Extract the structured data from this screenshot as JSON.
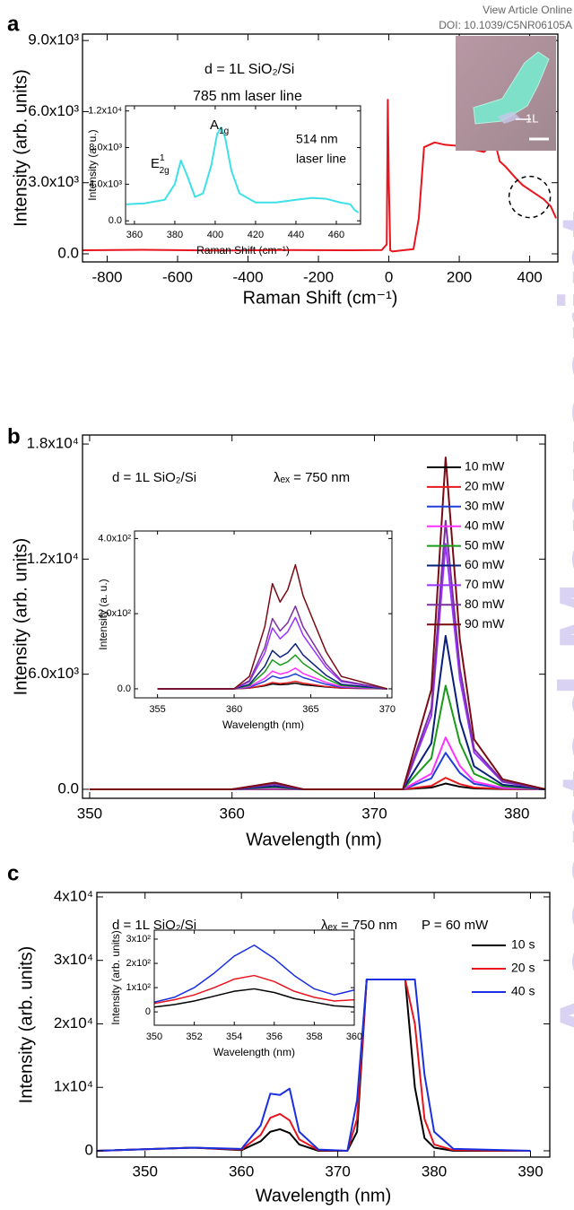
{
  "header": {
    "view": "View Article Online",
    "doi": "DOI: 10.1039/C5NR06105A"
  },
  "watermark": "Accepted Manuscript",
  "chart_data": [
    {
      "type": "line",
      "label": "a",
      "ylabel": "Intensity (arb. units)",
      "xlabel": "Raman Shift (cm⁻¹)",
      "annotations": [
        "d = 1L  SiO₂/Si",
        "785 nm  laser line",
        "1L"
      ],
      "xlim": [
        -870,
        480
      ],
      "ylim": [
        -340,
        9270
      ],
      "xticks": [
        -800,
        -600,
        -400,
        -200,
        0,
        200,
        400
      ],
      "yticks": [
        {
          "value": 0,
          "label": "0.0"
        },
        {
          "value": 3000,
          "label": "3.0x10³"
        },
        {
          "value": 6000,
          "label": "6.0x10³"
        },
        {
          "value": 9000,
          "label": "9.0x10³"
        }
      ],
      "x": [
        -870,
        -700,
        -500,
        -300,
        -100,
        -20,
        -6,
        -3,
        0,
        4,
        10,
        40,
        70,
        85,
        100,
        130,
        160,
        200,
        240,
        270,
        285,
        295,
        300,
        305,
        315,
        330,
        360,
        380,
        400,
        420,
        440,
        460,
        475
      ],
      "values": [
        150,
        170,
        140,
        160,
        150,
        160,
        400,
        6500,
        3000,
        150,
        100,
        150,
        200,
        1500,
        4500,
        4700,
        4600,
        4550,
        4400,
        4300,
        4500,
        4800,
        5000,
        4500,
        3900,
        3700,
        3200,
        2900,
        2700,
        2500,
        2300,
        2000,
        1500
      ],
      "color": "#e8141e"
    },
    {
      "type": "line",
      "ylabel": "Intensity (a. u.)",
      "xlabel": "Raman Shift (cm⁻¹)",
      "annotations": [
        "514 nm",
        "laser line"
      ],
      "peak_labels": [
        {
          "text": "E",
          "sup": "1",
          "sub": "2g"
        },
        {
          "text": "A",
          "sub": "1g"
        }
      ],
      "xlim": [
        355.6,
        472
      ],
      "ylim": [
        -375,
        12560
      ],
      "xticks": [
        360,
        380,
        400,
        420,
        440,
        460
      ],
      "yticks": [
        {
          "value": 0,
          "label": "0.0"
        },
        {
          "value": 4000,
          "label": "4.0x10³"
        },
        {
          "value": 8000,
          "label": "8.0x10³"
        },
        {
          "value": 12000,
          "label": "1.2x10⁴"
        }
      ],
      "x": [
        356,
        365,
        375,
        380,
        383,
        386,
        390,
        394,
        398,
        401,
        403,
        405,
        408,
        412,
        420,
        430,
        440,
        448,
        455,
        462,
        467,
        469,
        471
      ],
      "values": [
        1800,
        1900,
        2300,
        4000,
        6600,
        5000,
        2600,
        3000,
        6000,
        9500,
        10200,
        9000,
        5500,
        3000,
        2000,
        2000,
        2300,
        2500,
        2400,
        2000,
        1800,
        1200,
        900
      ],
      "color": "#3ee0e8"
    },
    {
      "type": "line",
      "label": "b",
      "ylabel": "Intensity (arb. units)",
      "xlabel": "Wavelength (nm)",
      "annotations": [
        "d = 1L   SiO₂/Si",
        "λₑₓ = 750 nm"
      ],
      "xlim": [
        349.5,
        382
      ],
      "ylim": [
        -470,
        18470
      ],
      "xticks": [
        350,
        360,
        370,
        380
      ],
      "yticks": [
        {
          "value": 0,
          "label": "0.0"
        },
        {
          "value": 6000,
          "label": "6.0x10³"
        },
        {
          "value": 12000,
          "label": "1.2x10⁴"
        },
        {
          "value": 18000,
          "label": "1.8x10⁴"
        }
      ],
      "x": [
        350,
        360,
        363,
        365,
        372,
        374,
        375,
        376,
        377,
        379,
        382
      ],
      "series": [
        {
          "name": "10 mW",
          "color": "#000000",
          "values": [
            0,
            0,
            10,
            0,
            0,
            90,
            300,
            135,
            45,
            10,
            0
          ]
        },
        {
          "name": "20 mW",
          "color": "#e41a1c",
          "values": [
            0,
            0,
            15,
            0,
            0,
            180,
            600,
            270,
            90,
            20,
            0
          ]
        },
        {
          "name": "30 mW",
          "color": "#1f3fd6",
          "values": [
            0,
            0,
            40,
            0,
            0,
            570,
            1900,
            855,
            285,
            60,
            0
          ]
        },
        {
          "name": "40 mW",
          "color": "#ff33ff",
          "values": [
            0,
            0,
            55,
            0,
            0,
            810,
            2700,
            1215,
            405,
            80,
            0
          ]
        },
        {
          "name": "50 mW",
          "color": "#1a9a1a",
          "values": [
            0,
            0,
            110,
            0,
            0,
            1620,
            5400,
            2430,
            810,
            160,
            0
          ]
        },
        {
          "name": "60 mW",
          "color": "#0a1f7a",
          "values": [
            0,
            0,
            160,
            0,
            0,
            2400,
            8000,
            3600,
            1200,
            240,
            0
          ]
        },
        {
          "name": "70 mW",
          "color": "#9933ff",
          "values": [
            0,
            0,
            260,
            0,
            0,
            3840,
            12800,
            5760,
            1920,
            380,
            0
          ]
        },
        {
          "name": "80 mW",
          "color": "#7b2fa0",
          "values": [
            0,
            0,
            280,
            0,
            0,
            4200,
            14000,
            6300,
            2100,
            420,
            0
          ]
        },
        {
          "name": "90 mW",
          "color": "#7a0a14",
          "values": [
            0,
            0,
            350,
            0,
            0,
            5200,
            17300,
            7800,
            2600,
            520,
            0
          ]
        }
      ]
    },
    {
      "type": "line",
      "ylabel": "Intensity (a. u.)",
      "xlabel": "Wavelength (nm)",
      "xlim": [
        353.5,
        370.3
      ],
      "ylim": [
        -24,
        420
      ],
      "xticks": [
        355,
        360,
        365,
        370
      ],
      "yticks": [
        {
          "value": 0,
          "label": "0.0"
        },
        {
          "value": 200,
          "label": "2.0x10²"
        },
        {
          "value": 400,
          "label": "4.0x10²"
        }
      ],
      "x": [
        355,
        360,
        361,
        362,
        362.5,
        363,
        363.5,
        364,
        364.5,
        365,
        366,
        367,
        370
      ],
      "series": [
        {
          "color": "#000000",
          "values": [
            0,
            0,
            2,
            8,
            13,
            11,
            12,
            15,
            11,
            9,
            5,
            2,
            0
          ]
        },
        {
          "color": "#e41a1c",
          "values": [
            0,
            0,
            2,
            10,
            17,
            14,
            16,
            20,
            15,
            12,
            6,
            2,
            0
          ]
        },
        {
          "color": "#1f3fd6",
          "values": [
            0,
            0,
            4,
            20,
            34,
            28,
            32,
            40,
            30,
            24,
            12,
            4,
            0
          ]
        },
        {
          "color": "#ff33ff",
          "values": [
            0,
            0,
            6,
            28,
            47,
            39,
            44,
            55,
            41,
            33,
            17,
            6,
            0
          ]
        },
        {
          "color": "#1a9a1a",
          "values": [
            0,
            0,
            9,
            45,
            77,
            63,
            72,
            90,
            68,
            54,
            27,
            9,
            0
          ]
        },
        {
          "color": "#0a1f7a",
          "values": [
            0,
            0,
            12,
            60,
            102,
            84,
            96,
            120,
            90,
            72,
            36,
            12,
            0
          ]
        },
        {
          "color": "#9933ff",
          "values": [
            0,
            0,
            19,
            95,
            162,
            133,
            152,
            190,
            143,
            114,
            57,
            19,
            0
          ]
        },
        {
          "color": "#7b2fa0",
          "values": [
            0,
            0,
            22,
            110,
            187,
            154,
            176,
            220,
            165,
            132,
            66,
            22,
            0
          ]
        },
        {
          "color": "#7a0a14",
          "values": [
            0,
            0,
            33,
            165,
            280,
            231,
            264,
            330,
            248,
            198,
            99,
            33,
            0
          ]
        }
      ]
    },
    {
      "type": "line",
      "label": "c",
      "ylabel": "Intensity (arb. units)",
      "xlabel": "Wavelength (nm)",
      "annotations": [
        "d = 1L   SiO₂/Si",
        "λₑₓ = 750 nm",
        "P = 60 mW"
      ],
      "xlim": [
        345,
        392
      ],
      "ylim": [
        -990,
        40700
      ],
      "xticks": [
        350,
        360,
        370,
        380,
        390
      ],
      "yticks": [
        0,
        {
          "value": 10000,
          "label": "1x10⁴"
        },
        {
          "value": 20000,
          "label": "2x10⁴"
        },
        {
          "value": 30000,
          "label": "3x10⁴"
        },
        {
          "value": 40000,
          "label": "4x10⁴"
        }
      ],
      "x": [
        345,
        355,
        360,
        362,
        363,
        364,
        365,
        366,
        368,
        371,
        372,
        373,
        377,
        378,
        379,
        380,
        382,
        390
      ],
      "series": [
        {
          "name": "10 s",
          "color": "#000000",
          "values": [
            0,
            500,
            100,
            1500,
            3000,
            3400,
            2800,
            1000,
            0,
            0,
            3000,
            27000,
            27000,
            10000,
            2000,
            500,
            0,
            0
          ]
        },
        {
          "name": "20 s",
          "color": "#e8141e",
          "values": [
            0,
            500,
            200,
            2500,
            5200,
            5800,
            4800,
            1800,
            100,
            0,
            5000,
            27000,
            27000,
            20000,
            5000,
            1000,
            100,
            0
          ]
        },
        {
          "name": "40 s",
          "color": "#1a2fe0",
          "values": [
            0,
            500,
            300,
            4000,
            9000,
            8800,
            9800,
            3000,
            200,
            0,
            8000,
            27000,
            27000,
            27000,
            12000,
            3000,
            300,
            0
          ]
        }
      ]
    },
    {
      "type": "line",
      "ylabel": "Intensity (arb. units)",
      "xlabel": "Wavelength (nm)",
      "xlim": [
        350,
        360
      ],
      "ylim": [
        -55,
        337
      ],
      "xticks": [
        350,
        352,
        354,
        356,
        358,
        360
      ],
      "yticks": [
        0,
        {
          "value": 100,
          "label": "1x10²"
        },
        {
          "value": 200,
          "label": "2x10²"
        },
        {
          "value": 300,
          "label": "3x10²"
        }
      ],
      "x": [
        350,
        351,
        352,
        353,
        354,
        355,
        356,
        357,
        358,
        359,
        360
      ],
      "series": [
        {
          "color": "#000000",
          "values": [
            20,
            30,
            45,
            65,
            85,
            95,
            80,
            55,
            40,
            25,
            20
          ]
        },
        {
          "color": "#e8141e",
          "values": [
            35,
            50,
            70,
            100,
            135,
            150,
            125,
            85,
            60,
            45,
            50
          ]
        },
        {
          "color": "#1a2fe0",
          "values": [
            40,
            60,
            100,
            160,
            230,
            275,
            220,
            150,
            95,
            70,
            90
          ]
        }
      ]
    }
  ]
}
